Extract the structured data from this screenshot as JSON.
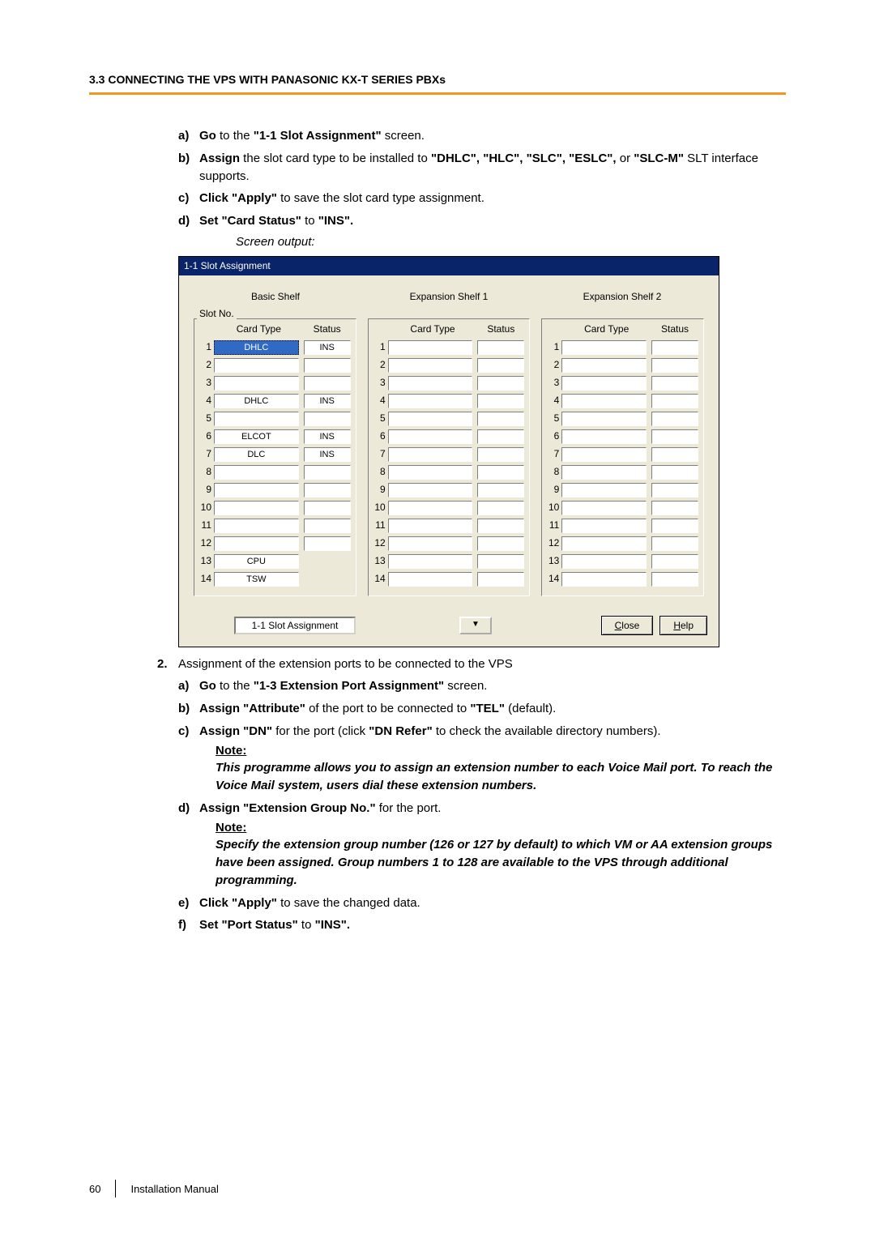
{
  "header": {
    "section": "3.3 CONNECTING THE VPS WITH PANASONIC KX-T SERIES PBXs"
  },
  "steps1": {
    "a": {
      "m": "a)",
      "b1": "Go",
      "t1": " to the ",
      "b2": "\"1-1 Slot Assignment\"",
      "t2": " screen."
    },
    "b": {
      "m": "b)",
      "b1": "Assign",
      "t1": " the slot card type to be installed to ",
      "b2": "\"DHLC\", \"HLC\", \"SLC\", \"ESLC\",",
      "t2": " or ",
      "b3": "\"SLC-M\"",
      "t3": " SLT interface supports."
    },
    "c": {
      "m": "c)",
      "b1": "Click \"Apply\"",
      "t1": " to save the slot card type assignment."
    },
    "d": {
      "m": "d)",
      "b1": "Set \"Card Status\"",
      "t1": " to ",
      "b2": "\"INS\"."
    },
    "screen_output": "Screen output:"
  },
  "screenshot": {
    "title": "1-1 Slot Assignment",
    "shelves": [
      "Basic Shelf",
      "Expansion Shelf 1",
      "Expansion Shelf 2"
    ],
    "group_label": "Slot No.",
    "col_headers": {
      "type": "Card Type",
      "status": "Status"
    },
    "basic_rows": [
      {
        "n": "1",
        "type": "DHLC",
        "status": "INS",
        "sel": true
      },
      {
        "n": "2",
        "type": "",
        "status": ""
      },
      {
        "n": "3",
        "type": "",
        "status": ""
      },
      {
        "n": "4",
        "type": "DHLC",
        "status": "INS"
      },
      {
        "n": "5",
        "type": "",
        "status": ""
      },
      {
        "n": "6",
        "type": "ELCOT",
        "status": "INS"
      },
      {
        "n": "7",
        "type": "DLC",
        "status": "INS"
      },
      {
        "n": "8",
        "type": "",
        "status": ""
      },
      {
        "n": "9",
        "type": "",
        "status": ""
      },
      {
        "n": "10",
        "type": "",
        "status": ""
      },
      {
        "n": "11",
        "type": "",
        "status": ""
      },
      {
        "n": "12",
        "type": "",
        "status": ""
      },
      {
        "n": "13",
        "type": "CPU",
        "status": "",
        "nostatus": true
      },
      {
        "n": "14",
        "type": "TSW",
        "status": "",
        "nostatus": true
      }
    ],
    "empty_rows": 14,
    "nav_value": "1-1 Slot Assignment",
    "dropdown_glyph": "▼",
    "close_label": "lose",
    "close_ul": "C",
    "help_label": "elp",
    "help_ul": "H"
  },
  "step2": {
    "num": "2.",
    "text": "Assignment of the extension ports to be connected to the VPS",
    "a": {
      "m": "a)",
      "b1": "Go",
      "t1": " to the ",
      "b2": "\"1-3 Extension Port Assignment\"",
      "t2": " screen."
    },
    "b": {
      "m": "b)",
      "b1": "Assign \"Attribute\"",
      "t1": " of the port to be connected to ",
      "b2": "\"TEL\"",
      "t2": " (default)."
    },
    "c": {
      "m": "c)",
      "b1": "Assign \"DN\"",
      "t1": " for the port (click ",
      "b2": "\"DN Refer\"",
      "t2": " to check the available directory numbers).",
      "note": "Note:",
      "note_body": "This programme allows you to assign an extension number to each Voice Mail port. To reach the Voice Mail system, users dial these extension numbers."
    },
    "d": {
      "m": "d)",
      "b1": "Assign \"Extension Group No.\"",
      "t1": " for the port.",
      "note": "Note:",
      "note_body": "Specify the extension group number (126 or 127 by default) to which VM or AA extension groups have been assigned. Group numbers 1 to 128 are available to the VPS through additional programming."
    },
    "e": {
      "m": "e)",
      "b1": "Click \"Apply\"",
      "t1": " to save the changed data."
    },
    "f": {
      "m": "f)",
      "b1": "Set \"Port Status\"",
      "t1": " to ",
      "b2": "\"INS\"."
    }
  },
  "footer": {
    "page": "60",
    "title": "Installation Manual"
  }
}
